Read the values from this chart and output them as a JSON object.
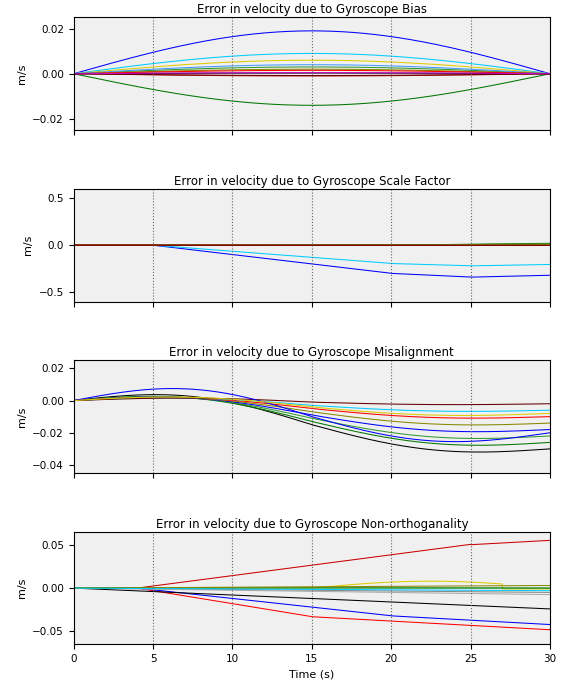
{
  "titles": [
    "Error in velocity due to Gyroscope Bias",
    "Error in velocity due to Gyroscope Scale Factor",
    "Error in velocity due to Gyroscope Misalignment",
    "Error in velocity due to Gyroscope Non-orthoganality"
  ],
  "ylabel": "m/s",
  "xlabel": "Time (s)",
  "xlim": [
    0,
    30
  ],
  "xticks": [
    0,
    5,
    10,
    15,
    20,
    25,
    30
  ],
  "vlines": [
    5,
    10,
    15,
    20,
    25
  ],
  "plot1_ylim": [
    -0.025,
    0.025
  ],
  "plot1_yticks": [
    -0.02,
    0.0,
    0.02
  ],
  "plot2_ylim": [
    -0.6,
    0.6
  ],
  "plot2_yticks": [
    -0.5,
    0.0,
    0.5
  ],
  "plot3_ylim": [
    -0.045,
    0.025
  ],
  "plot3_yticks": [
    -0.04,
    -0.02,
    0.0,
    0.02
  ],
  "plot4_ylim": [
    -0.065,
    0.065
  ],
  "plot4_yticks": [
    -0.05,
    0.0,
    0.05
  ],
  "bg_color": "#f0f0f0",
  "colors": {
    "blue": "#0000FF",
    "blue2": "#4499FF",
    "cyan": "#00CCFF",
    "green": "#007700",
    "green2": "#339933",
    "olive": "#888800",
    "yellow": "#DDCC00",
    "red": "#FF0000",
    "red2": "#CC0000",
    "maroon": "#660000",
    "magenta": "#CC00CC",
    "black": "#000000",
    "gray": "#888888",
    "ltgray": "#AAAAAA"
  }
}
